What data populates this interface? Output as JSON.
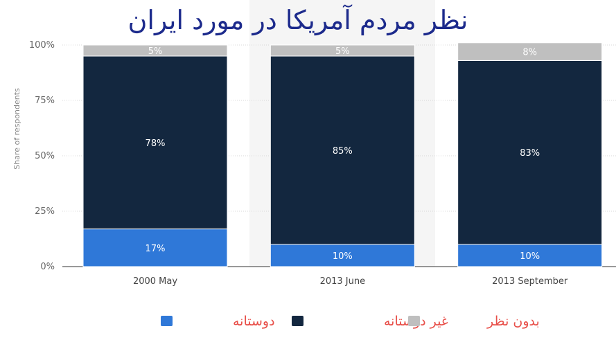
{
  "chart_data": {
    "type": "bar",
    "stacked": true,
    "title": "نظر مردم آمریکا در مورد ایران",
    "ylabel": "Share of respondents",
    "xlabel": "",
    "categories": [
      "2000 May",
      "2013 June",
      "2013 September"
    ],
    "y_ticks": [
      "0%",
      "25%",
      "50%",
      "75%",
      "100%"
    ],
    "ylim": [
      0,
      100
    ],
    "grid": true,
    "legend_position": "bottom",
    "series": [
      {
        "name": "دوستانه",
        "values": [
          17,
          10,
          10
        ],
        "labels": [
          "17%",
          "10%",
          "10%"
        ],
        "color": "#2f78d8"
      },
      {
        "name": "غیر دوستانه",
        "values": [
          78,
          85,
          83
        ],
        "labels": [
          "78%",
          "85%",
          "83%"
        ],
        "color": "#13273f"
      },
      {
        "name": "بدون نظر",
        "values": [
          5,
          5,
          8
        ],
        "labels": [
          "5%",
          "5%",
          "8%"
        ],
        "color": "#bfbfbf"
      }
    ],
    "colors": {
      "title": "#1c2a8c",
      "legend_text": "#e8504a",
      "axis_text": "#666666",
      "grid": "#d8d8d8",
      "band": "#f5f5f5"
    }
  }
}
